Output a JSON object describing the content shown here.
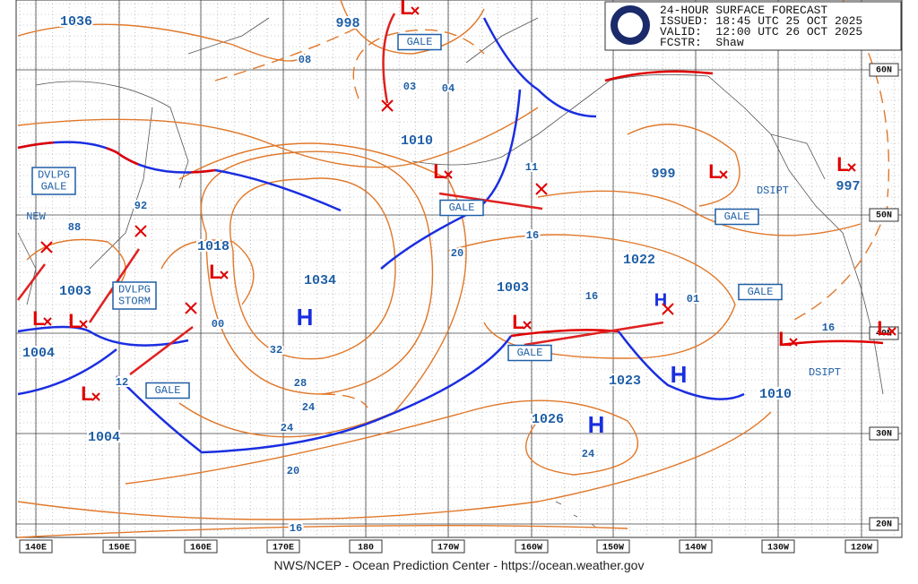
{
  "header": {
    "title": "24-HOUR SURFACE FORECAST",
    "issued": "ISSUED: 18:45 UTC 25 OCT 2025",
    "valid": "VALID:  12:00 UTC 26 OCT 2025",
    "forecaster": "FCSTR:  Shaw"
  },
  "footer": "NWS/NCEP - Ocean Prediction Center - https://ocean.weather.gov",
  "longitudes": [
    "140E",
    "150E",
    "160E",
    "170E",
    "180",
    "170W",
    "160W",
    "150W",
    "140W",
    "130W",
    "120W"
  ],
  "latitudes": [
    "60N",
    "50N",
    "40N",
    "30N",
    "20N"
  ],
  "isobar_labels": [
    "1036",
    "998",
    "08",
    "03",
    "04",
    "1010",
    "11",
    "999",
    "997",
    "92",
    "88",
    "1018",
    "20",
    "16",
    "1022",
    "1034",
    "1003",
    "1003",
    "16",
    "01",
    "00",
    "32",
    "1004",
    "12",
    "28",
    "1023",
    "24",
    "1010",
    "16",
    "1026",
    "1004",
    "24",
    "24",
    "20",
    "16"
  ],
  "boxed_tags": [
    [
      "GALE"
    ],
    [
      "DVLPG",
      "GALE"
    ],
    [
      "GALE"
    ],
    [
      "GALE"
    ],
    [
      "DVLPG",
      "STORM"
    ],
    [
      "GALE"
    ],
    [
      "GALE"
    ],
    [
      "GALE"
    ]
  ],
  "plain_tags": [
    "NEW",
    "DSIPT",
    "DSIPT"
  ],
  "highs": [
    "H",
    "H",
    "H",
    "H"
  ],
  "lows": [
    "L",
    "L",
    "L",
    "L",
    "L",
    "L",
    "L",
    "L",
    "L",
    "L",
    "L"
  ]
}
